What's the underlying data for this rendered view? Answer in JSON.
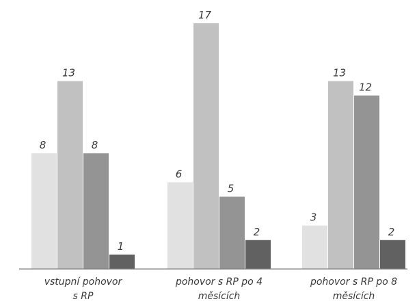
{
  "chart_data": {
    "type": "bar",
    "categories": [
      [
        "vstupní pohovor",
        "s RP"
      ],
      [
        "pohovor s RP po 4",
        "měsících"
      ],
      [
        "pohovor s RP po 8",
        "měsících"
      ]
    ],
    "series": [
      {
        "values": [
          8,
          6,
          3
        ],
        "color": "#e1e1e1"
      },
      {
        "values": [
          13,
          17,
          13
        ],
        "color": "#c1c1c1"
      },
      {
        "values": [
          8,
          5,
          12
        ],
        "color": "#949494"
      },
      {
        "values": [
          1,
          2,
          2
        ],
        "color": "#616161"
      }
    ],
    "ylim": [
      0,
      17
    ],
    "grid": false,
    "legend": "none",
    "data_labels": true,
    "axis_color": "#7f7f7f"
  }
}
